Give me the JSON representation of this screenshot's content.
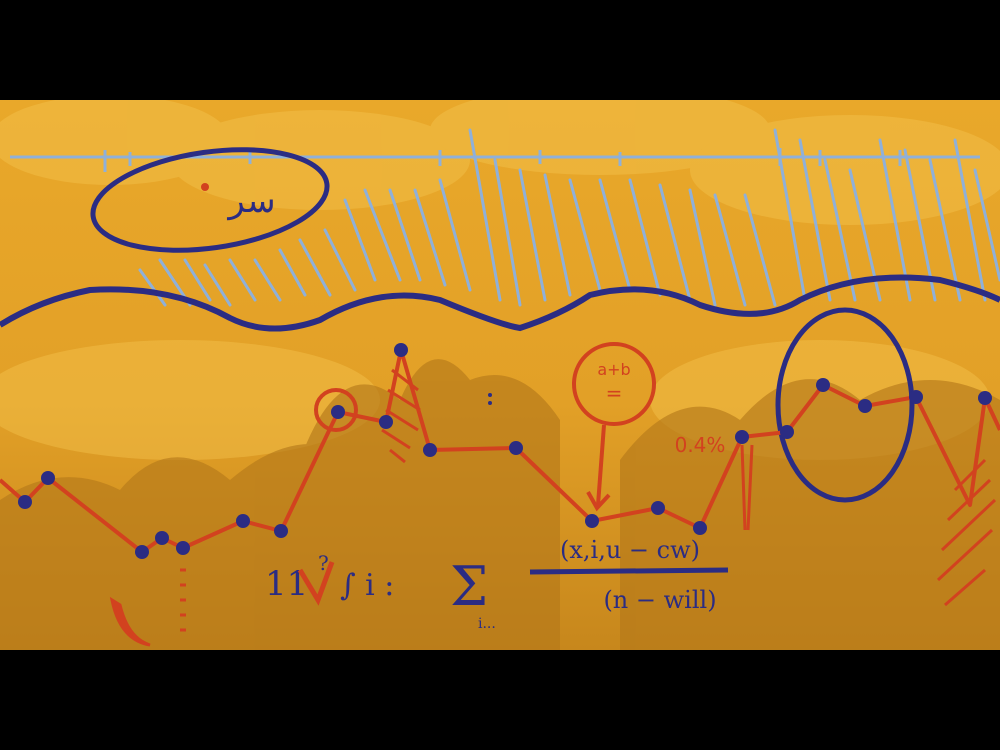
{
  "scene": {
    "description_free": true,
    "colors": {
      "background_top": "#E8A62A",
      "background_bottom": "#C7881C",
      "cloud": "#F2C04A",
      "foliage": "#B27712",
      "rain": "#8FB0D9",
      "ink_blue": "#2B2C83",
      "ink_red": "#D2421F",
      "letterbox": "#000000"
    }
  },
  "annotations": {
    "oval_label": "سر",
    "percent_label": "0.4%",
    "circle_label_top": "a+b",
    "circle_label_bottom": "=",
    "formula_left": "11",
    "formula_q": "?",
    "formula_int": "∫ i :",
    "formula_sum": "Σ",
    "formula_numerator": "(x,i,u − cw)",
    "formula_denominator": "(n − will)",
    "formula_sub": "i..."
  }
}
